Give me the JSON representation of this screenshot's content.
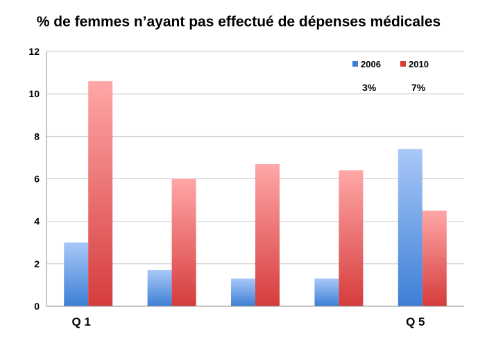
{
  "colors": {
    "series_2006_light": "#a9c8f8",
    "series_2006_dark": "#3d7fd6",
    "series_2010_light": "#ffa7a7",
    "series_2010_dark": "#d63c3c"
  },
  "chart_data": {
    "type": "bar",
    "title": "% de femmes n’ayant pas effectué de dépenses médicales",
    "xlabel": "",
    "ylabel": "",
    "categories": [
      "Q 1",
      "",
      "",
      "",
      "Q 5"
    ],
    "series": [
      {
        "name": "2006",
        "values": [
          3.0,
          1.7,
          1.3,
          1.3,
          7.4
        ]
      },
      {
        "name": "2010",
        "values": [
          10.6,
          6.0,
          6.7,
          6.4,
          4.5
        ]
      }
    ],
    "ylim": [
      0,
      12
    ],
    "yticks": [
      0,
      2,
      4,
      6,
      8,
      10,
      12
    ],
    "grid": true,
    "legend": "top-right",
    "annotations": [
      "3%",
      "7%"
    ]
  }
}
